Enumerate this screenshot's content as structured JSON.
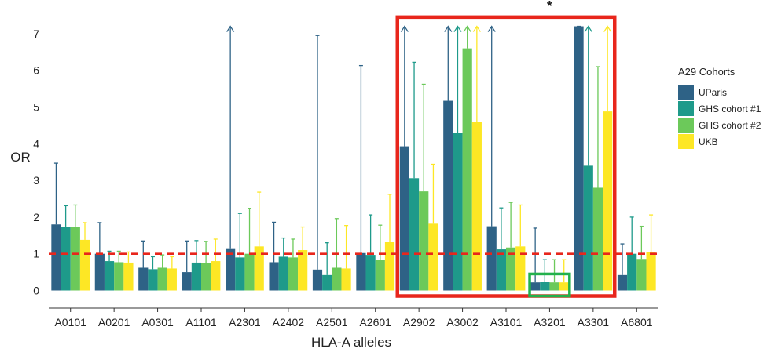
{
  "chart_data": {
    "type": "bar",
    "xlabel": "HLA-A alleles",
    "ylabel": "OR",
    "ylim": [
      -0.4,
      7.4
    ],
    "yticks": [
      0,
      1,
      2,
      3,
      4,
      5,
      6,
      7
    ],
    "categories": [
      "A0101",
      "A0201",
      "A0301",
      "A1101",
      "A2301",
      "A2402",
      "A2501",
      "A2601",
      "A2902",
      "A3002",
      "A3101",
      "A3201",
      "A3301",
      "A6801"
    ],
    "legend": {
      "title": "A29 Cohorts",
      "position": "right"
    },
    "reference_line": {
      "y": 1,
      "color": "#e8261c",
      "style": "dashed"
    },
    "series": [
      {
        "name": "UParis",
        "color": "#2e6286",
        "values": [
          1.8,
          1.0,
          0.62,
          0.5,
          1.15,
          0.77,
          0.57,
          1.02,
          3.93,
          5.17,
          1.75,
          0.22,
          7.2,
          0.42
        ],
        "upper": [
          3.47,
          1.85,
          1.35,
          1.35,
          7.2,
          1.86,
          6.95,
          6.13,
          7.2,
          7.2,
          7.2,
          1.7,
          7.2,
          1.27
        ],
        "upper_truncated": [
          false,
          false,
          false,
          false,
          true,
          false,
          false,
          false,
          true,
          true,
          true,
          false,
          false,
          false
        ]
      },
      {
        "name": "GHS cohort #1",
        "color": "#1e9a8a",
        "values": [
          1.73,
          0.8,
          0.58,
          0.76,
          0.9,
          0.92,
          0.42,
          0.97,
          3.06,
          4.3,
          1.12,
          0.24,
          3.4,
          1.0
        ],
        "upper": [
          2.31,
          1.07,
          0.92,
          1.36,
          2.1,
          1.43,
          1.3,
          2.06,
          6.22,
          7.2,
          2.25,
          0.84,
          7.2,
          2.0
        ],
        "upper_truncated": [
          false,
          false,
          false,
          false,
          false,
          false,
          false,
          false,
          false,
          true,
          false,
          false,
          true,
          false
        ]
      },
      {
        "name": "GHS cohort #2",
        "color": "#6cc95a",
        "values": [
          1.73,
          0.77,
          0.62,
          0.74,
          1.0,
          0.9,
          0.62,
          0.84,
          2.7,
          6.6,
          1.17,
          0.22,
          2.8,
          0.86
        ],
        "upper": [
          2.33,
          1.07,
          0.97,
          1.34,
          2.24,
          1.4,
          1.96,
          1.78,
          5.62,
          7.2,
          2.4,
          0.84,
          6.1,
          1.75
        ],
        "upper_truncated": [
          false,
          false,
          false,
          false,
          false,
          false,
          false,
          false,
          false,
          true,
          false,
          false,
          false,
          false
        ]
      },
      {
        "name": "UKB",
        "color": "#fde725",
        "values": [
          1.38,
          0.76,
          0.6,
          0.8,
          1.2,
          1.1,
          0.6,
          1.32,
          1.82,
          4.6,
          1.2,
          0.22,
          4.88,
          1.05
        ],
        "upper": [
          1.85,
          1.05,
          0.92,
          1.4,
          2.68,
          1.73,
          1.77,
          2.62,
          3.44,
          7.2,
          2.33,
          0.84,
          7.2,
          2.06
        ],
        "upper_truncated": [
          false,
          false,
          false,
          false,
          false,
          false,
          false,
          false,
          false,
          true,
          false,
          false,
          true,
          false
        ]
      }
    ],
    "annotations": [
      {
        "type": "box",
        "color": "#e8261c",
        "x_from": "A2902",
        "x_to": "A3301",
        "y_from": -0.15,
        "y_to": 7.45
      },
      {
        "type": "box",
        "color": "#22b14c",
        "x_from": "A3201",
        "x_to": "A3201",
        "y_from": -0.15,
        "y_to": 0.45
      },
      {
        "type": "text",
        "text": "*",
        "x": "A3201",
        "y": 7.75
      }
    ]
  }
}
